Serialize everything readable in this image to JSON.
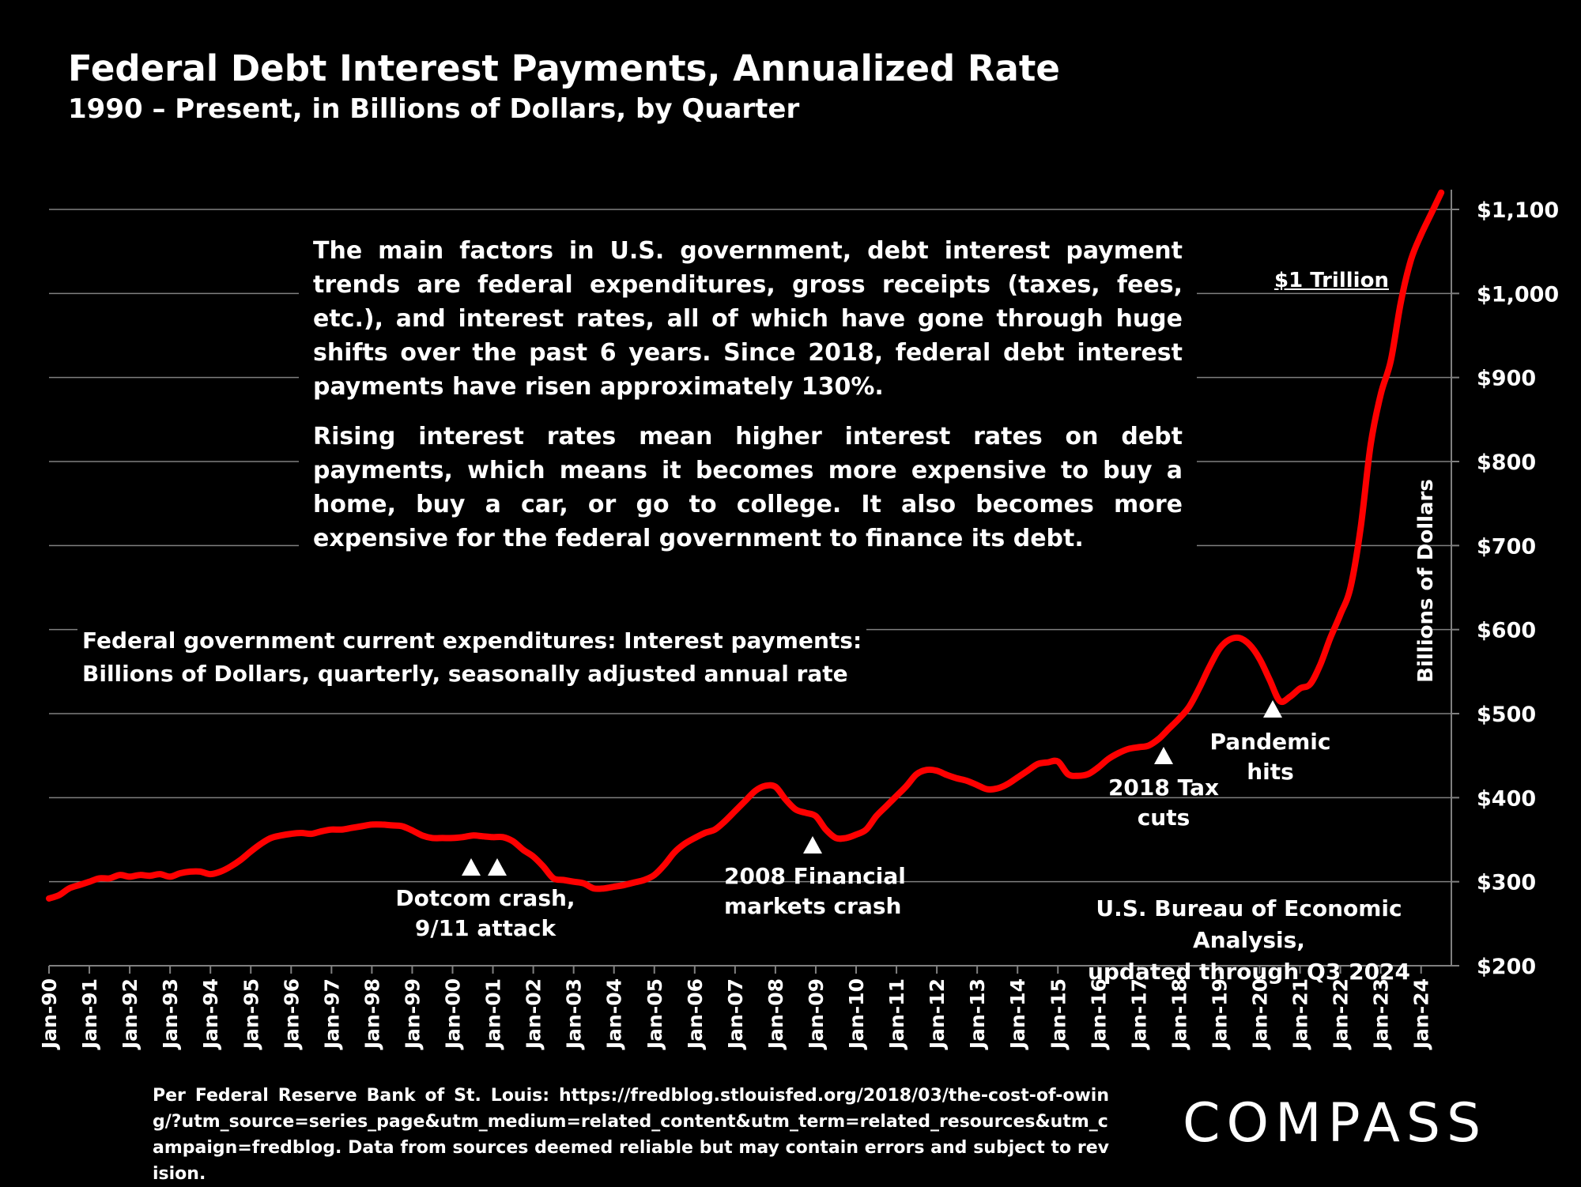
{
  "header": {
    "title": "Federal Debt Interest Payments, Annualized Rate",
    "subtitle": "1990 – Present, in Billions of Dollars, by Quarter"
  },
  "textbox": {
    "p1": "The main factors in U.S. government, debt interest payment trends are federal expenditures, gross receipts (taxes, fees, etc.), and interest rates, all of which have gone through huge shifts over the past 6 years. Since 2018, federal debt interest payments have risen approximately 130%.",
    "p2": "Rising interest rates mean higher interest rates on debt payments, which means it becomes more expensive to buy a home, buy a car, or go to college. It also becomes more expensive for the federal government to finance its debt."
  },
  "series_label": {
    "line1": "Federal government current expenditures: Interest payments:",
    "line2": "Billions of Dollars, quarterly, seasonally adjusted annual rate"
  },
  "source_note": {
    "line1": "U.S. Bureau of Economic Analysis,",
    "line2": "updated through Q3 2024"
  },
  "annotations": {
    "dotcom_l1": "Dotcom crash,",
    "dotcom_l2": "9/11 attack",
    "fin_l1": "2008 Financial",
    "fin_l2": "markets crash",
    "tax_l1": "2018 Tax",
    "tax_l2": "cuts",
    "pandemic_l1": "Pandemic",
    "pandemic_l2": "hits",
    "trillion": "$1 Trillion"
  },
  "footnote": "Per Federal Reserve Bank of St. Louis: https://fredblog.stlouisfed.org/2018/03/the-cost-of-owing/?utm_source=series_page&utm_medium=related_content&utm_term=related_resources&utm_campaign=fredblog. Data from sources deemed reliable but may contain errors and subject to revision.",
  "logo": "COMPASS",
  "colors": {
    "line": "#ff0000",
    "background": "#000000",
    "text": "#ffffff",
    "grid": "#808080"
  },
  "chart_data": {
    "type": "line",
    "title": "Federal Debt Interest Payments, Annualized Rate",
    "subtitle": "1990 – Present, in Billions of Dollars, by Quarter",
    "ylabel": "Billions of Dollars",
    "xlabel": "",
    "y_axis_side": "right",
    "ylim": [
      200,
      1100
    ],
    "xlim": [
      1990,
      2024.75
    ],
    "y_ticks": [
      200,
      300,
      400,
      500,
      600,
      700,
      800,
      900,
      1000,
      1100
    ],
    "y_tick_labels": [
      "$200",
      "$300",
      "$400",
      "$500",
      "$600",
      "$700",
      "$800",
      "$900",
      "$1,000",
      "$1,100"
    ],
    "x_ticks": [
      1990,
      1991,
      1992,
      1993,
      1994,
      1995,
      1996,
      1997,
      1998,
      1999,
      2000,
      2001,
      2002,
      2003,
      2004,
      2005,
      2006,
      2007,
      2008,
      2009,
      2010,
      2011,
      2012,
      2013,
      2014,
      2015,
      2016,
      2017,
      2018,
      2019,
      2020,
      2021,
      2022,
      2023,
      2024
    ],
    "x_tick_labels": [
      "Jan-90",
      "Jan-91",
      "Jan-92",
      "Jan-93",
      "Jan-94",
      "Jan-95",
      "Jan-96",
      "Jan-97",
      "Jan-98",
      "Jan-99",
      "Jan-00",
      "Jan-01",
      "Jan-02",
      "Jan-03",
      "Jan-04",
      "Jan-05",
      "Jan-06",
      "Jan-07",
      "Jan-08",
      "Jan-09",
      "Jan-10",
      "Jan-11",
      "Jan-12",
      "Jan-13",
      "Jan-14",
      "Jan-15",
      "Jan-16",
      "Jan-17",
      "Jan-18",
      "Jan-19",
      "Jan-20",
      "Jan-21",
      "Jan-22",
      "Jan-23",
      "Jan-24"
    ],
    "grid": true,
    "series": [
      {
        "name": "Federal government current expenditures: Interest payments",
        "x": [
          1990,
          1990.25,
          1990.5,
          1990.75,
          1991,
          1991.25,
          1991.5,
          1991.75,
          1992,
          1992.25,
          1992.5,
          1992.75,
          1993,
          1993.25,
          1993.5,
          1993.75,
          1994,
          1994.25,
          1994.5,
          1994.75,
          1995,
          1995.25,
          1995.5,
          1995.75,
          1996,
          1996.25,
          1996.5,
          1996.75,
          1997,
          1997.25,
          1997.5,
          1997.75,
          1998,
          1998.25,
          1998.5,
          1998.75,
          1999,
          1999.25,
          1999.5,
          1999.75,
          2000,
          2000.25,
          2000.5,
          2000.75,
          2001,
          2001.25,
          2001.5,
          2001.75,
          2002,
          2002.25,
          2002.5,
          2002.75,
          2003,
          2003.25,
          2003.5,
          2003.75,
          2004,
          2004.25,
          2004.5,
          2004.75,
          2005,
          2005.25,
          2005.5,
          2005.75,
          2006,
          2006.25,
          2006.5,
          2006.75,
          2007,
          2007.25,
          2007.5,
          2007.75,
          2008,
          2008.25,
          2008.5,
          2008.75,
          2009,
          2009.25,
          2009.5,
          2009.75,
          2010,
          2010.25,
          2010.5,
          2010.75,
          2011,
          2011.25,
          2011.5,
          2011.75,
          2012,
          2012.25,
          2012.5,
          2012.75,
          2013,
          2013.25,
          2013.5,
          2013.75,
          2014,
          2014.25,
          2014.5,
          2014.75,
          2015,
          2015.25,
          2015.5,
          2015.75,
          2016,
          2016.25,
          2016.5,
          2016.75,
          2017,
          2017.25,
          2017.5,
          2017.75,
          2018,
          2018.25,
          2018.5,
          2018.75,
          2019,
          2019.25,
          2019.5,
          2019.75,
          2020,
          2020.25,
          2020.5,
          2020.75,
          2021,
          2021.25,
          2021.5,
          2021.75,
          2022,
          2022.25,
          2022.5,
          2022.75,
          2023,
          2023.25,
          2023.5,
          2023.75,
          2024,
          2024.25,
          2024.5
        ],
        "values": [
          280,
          284,
          292,
          296,
          300,
          304,
          304,
          308,
          306,
          308,
          307,
          309,
          306,
          310,
          312,
          312,
          309,
          312,
          318,
          326,
          336,
          345,
          352,
          355,
          357,
          358,
          357,
          360,
          362,
          362,
          364,
          366,
          368,
          368,
          367,
          366,
          361,
          355,
          352,
          352,
          352,
          353,
          355,
          354,
          353,
          353,
          348,
          338,
          330,
          318,
          304,
          302,
          300,
          298,
          292,
          292,
          294,
          296,
          299,
          302,
          308,
          320,
          335,
          345,
          352,
          358,
          362,
          372,
          384,
          396,
          408,
          414,
          413,
          398,
          386,
          382,
          378,
          362,
          352,
          352,
          356,
          362,
          378,
          390,
          402,
          414,
          428,
          433,
          432,
          427,
          423,
          420,
          415,
          410,
          411,
          416,
          424,
          432,
          440,
          442,
          443,
          428,
          426,
          428,
          436,
          446,
          453,
          458,
          460,
          462,
          470,
          482,
          494,
          508,
          530,
          555,
          577,
          588,
          590,
          582,
          565,
          540,
          515,
          520,
          530,
          535,
          558,
          590,
          618,
          650,
          720,
          820,
          880,
          920,
          990,
          1040,
          1070,
          1095,
          1120
        ]
      }
    ]
  }
}
